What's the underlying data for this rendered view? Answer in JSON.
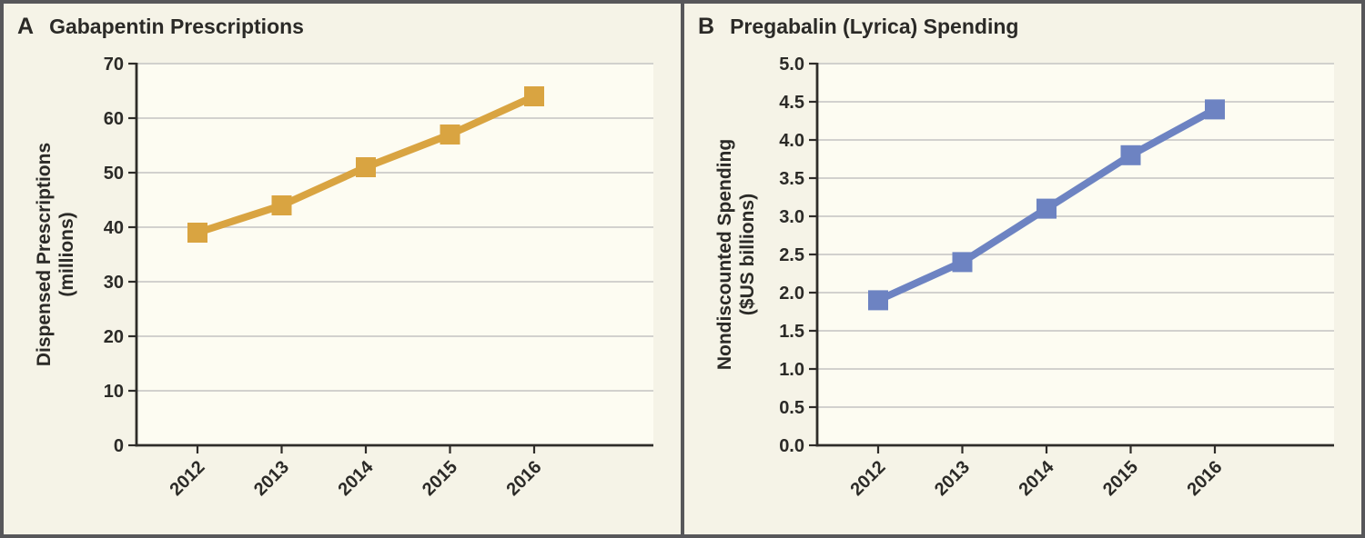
{
  "panels": [
    {
      "letter": "A",
      "title": "Gabapentin Prescriptions",
      "ylabel_line1": "Dispensed Prescriptions",
      "ylabel_line2": "(millions)"
    },
    {
      "letter": "B",
      "title": "Pregabalin (Lyrica) Spending",
      "ylabel_line1": "Nondiscounted Spending",
      "ylabel_line2": "($US billions)"
    }
  ],
  "colors": {
    "background": "#f5f3e7",
    "plot_background": "#fdfcf2",
    "gridline": "#cbcbc9",
    "axis": "#2e2c29",
    "frame_border": "#57575a",
    "text": "#2b2a27",
    "panel_a_series": "#d9a441",
    "panel_b_series": "#6d83c2"
  },
  "chart_data": [
    {
      "type": "line",
      "panel": "A",
      "title": "Gabapentin Prescriptions",
      "x": [
        "2012",
        "2013",
        "2014",
        "2015",
        "2016"
      ],
      "values": [
        39,
        44,
        51,
        57,
        64
      ],
      "xlabel": "",
      "ylabel": "Dispensed Prescriptions (millions)",
      "ylim": [
        0,
        70
      ],
      "yticks": [
        0,
        10,
        20,
        30,
        40,
        50,
        60,
        70
      ],
      "ytick_labels": [
        "0",
        "10",
        "20",
        "30",
        "40",
        "50",
        "60",
        "70"
      ],
      "color": "#d9a441",
      "marker": "square",
      "grid": "horizontal",
      "legend": "none"
    },
    {
      "type": "line",
      "panel": "B",
      "title": "Pregabalin (Lyrica) Spending",
      "x": [
        "2012",
        "2013",
        "2014",
        "2015",
        "2016"
      ],
      "values": [
        1.9,
        2.4,
        3.1,
        3.8,
        4.4
      ],
      "xlabel": "",
      "ylabel": "Nondiscounted Spending ($US billions)",
      "ylim": [
        0,
        5
      ],
      "yticks": [
        0,
        0.5,
        1,
        1.5,
        2,
        2.5,
        3,
        3.5,
        4,
        4.5,
        5
      ],
      "ytick_labels": [
        "0.0",
        "0.5",
        "1.0",
        "1.5",
        "2.0",
        "2.5",
        "3.0",
        "3.5",
        "4.0",
        "4.5",
        "5.0"
      ],
      "color": "#6d83c2",
      "marker": "square",
      "grid": "horizontal",
      "legend": "none"
    }
  ]
}
